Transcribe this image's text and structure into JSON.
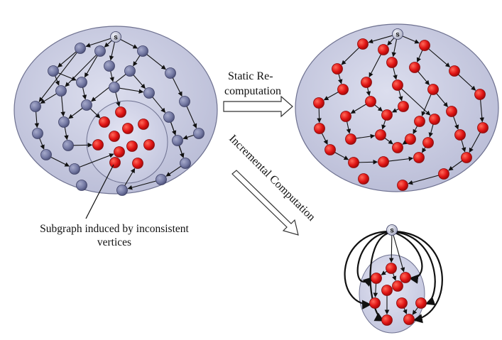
{
  "labels": {
    "static_line1": "Static Re-",
    "static_line2": "computation",
    "incremental": "Incremental Computation",
    "caption_line1": "Subgraph induced by inconsistent",
    "caption_line2": "vertices",
    "source": "s"
  },
  "colors": {
    "background_ellipse": "#c9cbe0",
    "inner_ellipse": "#d9dbee",
    "consistent_vertex": "#7a7fa8",
    "inconsistent_vertex": "#e01414",
    "edge": "#111111",
    "source_vertex": "#c7c9d8"
  }
}
